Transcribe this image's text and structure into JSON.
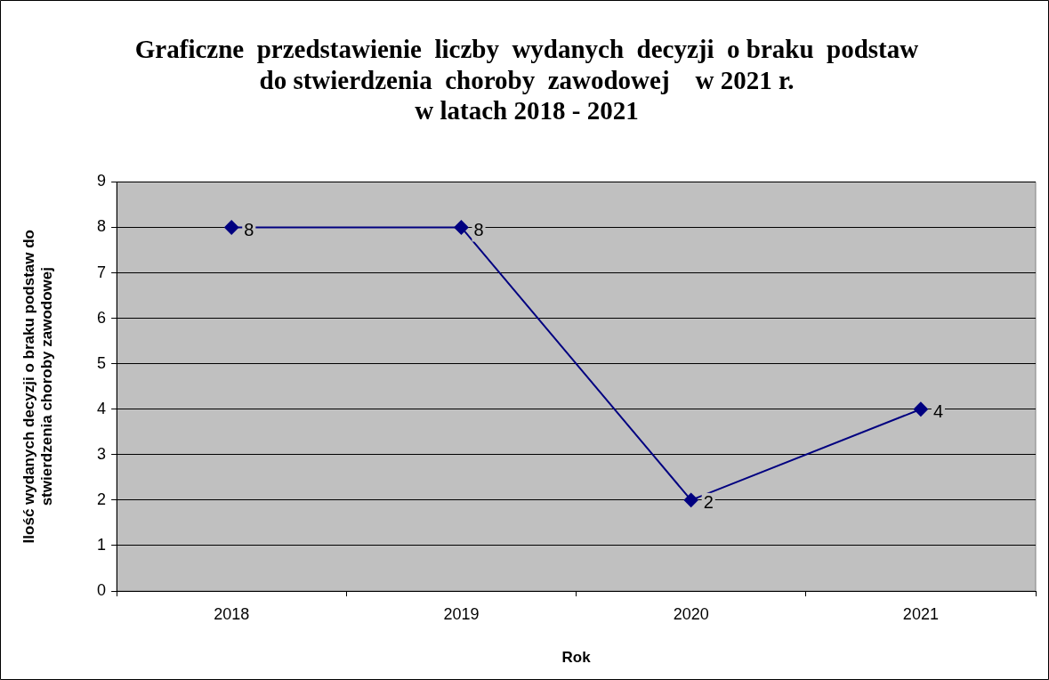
{
  "chart_data": {
    "type": "line",
    "title": "Graficzne  przedstawienie  liczby  wydanych  decyzji  o braku  podstaw\ndo stwierdzenia  choroby  zawodowej    w 2021 r.\nw latach 2018 - 2021",
    "xlabel": "Rok",
    "ylabel": "Ilość wydanych decyzji o braku podstaw do stwierdzenia choroby zawodowej",
    "categories": [
      "2018",
      "2019",
      "2020",
      "2021"
    ],
    "series": [
      {
        "color": "#000080",
        "values": [
          8,
          8,
          2,
          4
        ]
      }
    ],
    "ylim": [
      0,
      9
    ],
    "yticks": [
      0,
      1,
      2,
      3,
      4,
      5,
      6,
      7,
      8,
      9
    ],
    "grid": "y",
    "legend": false,
    "marker": "diamond",
    "line_style": "solid",
    "data_labels": true
  }
}
